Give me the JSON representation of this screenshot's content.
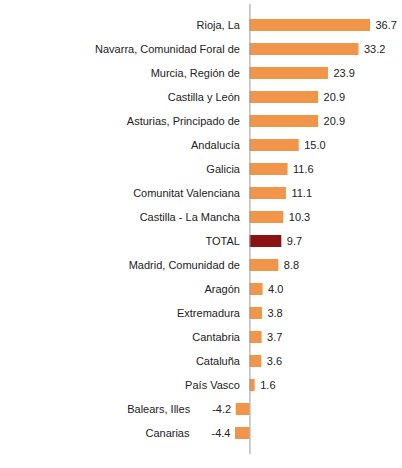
{
  "chart_data": {
    "type": "bar",
    "orientation": "horizontal",
    "data_labels": true,
    "tick_labels": "y",
    "grid": false,
    "categories": [
      "Rioja, La",
      "Navarra, Comunidad Foral de",
      "Murcia, Región de",
      "Castilla y León",
      "Asturias, Principado de",
      "Andalucía",
      "Galicia",
      "Comunitat Valenciana",
      "Castilla - La Mancha",
      "TOTAL",
      "Madrid, Comunidad de",
      "Aragón",
      "Extremadura",
      "Cantabria",
      "Cataluña",
      "País Vasco",
      "Balears, Illes",
      "Canarias"
    ],
    "values": [
      36.7,
      33.2,
      23.9,
      20.9,
      20.9,
      15.0,
      11.6,
      11.1,
      10.3,
      9.7,
      8.8,
      4.0,
      3.8,
      3.7,
      3.6,
      1.6,
      -4.2,
      -4.4
    ],
    "value_labels": [
      "36.7",
      "33.2",
      "23.9",
      "20.9",
      "20.9",
      "15.0",
      "11.6",
      "11.1",
      "10.3",
      "9.7",
      "8.8",
      "4.0",
      "3.8",
      "3.7",
      "3.6",
      "1.6",
      "-4.2",
      "-4.4"
    ],
    "colors": [
      "#f0954a",
      "#f0954a",
      "#f0954a",
      "#f0954a",
      "#f0954a",
      "#f0954a",
      "#f0954a",
      "#f0954a",
      "#f0954a",
      "#8b1212",
      "#f0954a",
      "#f0954a",
      "#f0954a",
      "#f0954a",
      "#f0954a",
      "#f0954a",
      "#f0954a",
      "#f0954a"
    ]
  }
}
